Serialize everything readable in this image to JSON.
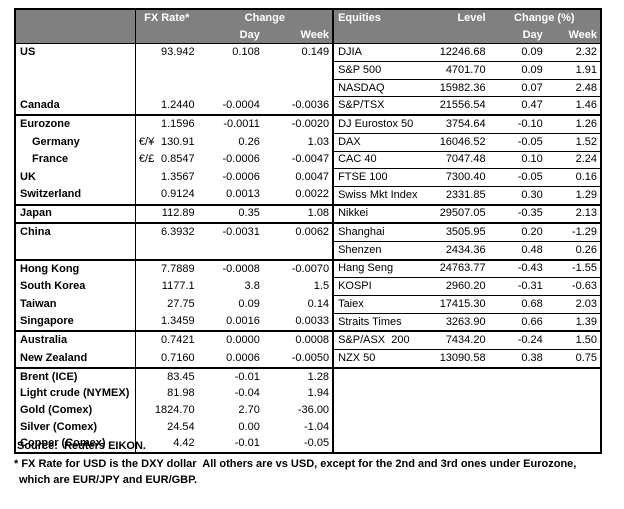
{
  "colors": {
    "header_bg": "#808080",
    "header_text": "#ffffff",
    "border": "#000000",
    "body_bg": "#ffffff",
    "text": "#000000"
  },
  "header": {
    "fx": {
      "rate_label": "FX Rate*",
      "change_label": "Change",
      "day_label": "Day",
      "week_label": "Week"
    },
    "equities": {
      "title": "Equities",
      "level_label": "Level",
      "change_label": "Change (%)",
      "day_label": "Day",
      "week_label": "Week"
    }
  },
  "rows": [
    {
      "section_start": false,
      "commodity": false,
      "left": {
        "label": "US",
        "rate": "93.942",
        "day": "0.108",
        "week": "0.149"
      },
      "right": {
        "name": "DJIA",
        "level": "12246.68",
        "day": "0.09",
        "week": "2.32"
      }
    },
    {
      "section_start": false,
      "commodity": false,
      "left": {},
      "right": {
        "name": "S&P 500",
        "level": "4701.70",
        "day": "0.09",
        "week": "1.91"
      }
    },
    {
      "section_start": false,
      "commodity": false,
      "left": {},
      "right": {
        "name": "NASDAQ",
        "level": "15982.36",
        "day": "0.07",
        "week": "2.48"
      }
    },
    {
      "section_start": false,
      "commodity": false,
      "left": {
        "label": "Canada",
        "rate": "1.2440",
        "day": "-0.0004",
        "week": "-0.0036"
      },
      "right": {
        "name": "S&P/TSX",
        "level": "21556.54",
        "day": "0.47",
        "week": "1.46"
      }
    },
    {
      "section_start": true,
      "commodity": false,
      "left": {
        "label": "Eurozone",
        "rate": "1.1596",
        "day": "-0.0011",
        "week": "-0.0020"
      },
      "right": {
        "name": "DJ Eurostox 50",
        "level": "3754.64",
        "day": "-0.10",
        "week": "1.26"
      }
    },
    {
      "section_start": false,
      "commodity": false,
      "left": {
        "label": "Germany",
        "indent": true,
        "symbol": "€/¥",
        "rate": "130.91",
        "day": "0.26",
        "week": "1.03"
      },
      "right": {
        "name": "DAX",
        "level": "16046.52",
        "day": "-0.05",
        "week": "1.52"
      }
    },
    {
      "section_start": false,
      "commodity": false,
      "left": {
        "label": "France",
        "indent": true,
        "symbol": "€/£",
        "rate": "0.8547",
        "day": "-0.0006",
        "week": "-0.0047"
      },
      "right": {
        "name": "CAC 40",
        "level": "7047.48",
        "day": "0.10",
        "week": "2.24"
      }
    },
    {
      "section_start": false,
      "commodity": false,
      "left": {
        "label": "UK",
        "rate": "1.3567",
        "day": "-0.0006",
        "week": "0.0047"
      },
      "right": {
        "name": "FTSE 100",
        "level": "7300.40",
        "day": "-0.05",
        "week": "0.16"
      }
    },
    {
      "section_start": false,
      "commodity": false,
      "left": {
        "label": "Switzerland",
        "rate": "0.9124",
        "day": "0.0013",
        "week": "0.0022"
      },
      "right": {
        "name": "Swiss Mkt Index",
        "level": "2331.85",
        "day": "0.30",
        "week": "1.29"
      }
    },
    {
      "section_start": true,
      "commodity": false,
      "left": {
        "label": "Japan",
        "rate": "112.89",
        "day": "0.35",
        "week": "1.08"
      },
      "right": {
        "name": "Nikkei",
        "level": "29507.05",
        "day": "-0.35",
        "week": "2.13"
      }
    },
    {
      "section_start": true,
      "commodity": false,
      "left": {
        "label": "China",
        "rate": "6.3932",
        "day": "-0.0031",
        "week": "0.0062"
      },
      "right": {
        "name": "Shanghai",
        "level": "3505.95",
        "day": "0.20",
        "week": "-1.29"
      }
    },
    {
      "section_start": false,
      "commodity": false,
      "left": {},
      "right": {
        "name": "Shenzen",
        "level": "2434.36",
        "day": "0.48",
        "week": "0.26"
      }
    },
    {
      "section_start": true,
      "commodity": false,
      "left": {
        "label": "Hong Kong",
        "rate": "7.7889",
        "day": "-0.0008",
        "week": "-0.0070"
      },
      "right": {
        "name": "Hang Seng",
        "level": "24763.77",
        "day": "-0.43",
        "week": "-1.55"
      }
    },
    {
      "section_start": false,
      "commodity": false,
      "left": {
        "label": "South Korea",
        "rate": "1177.1",
        "day": "3.8",
        "week": "1.5"
      },
      "right": {
        "name": "KOSPI",
        "level": "2960.20",
        "day": "-0.31",
        "week": "-0.63"
      }
    },
    {
      "section_start": false,
      "commodity": false,
      "left": {
        "label": "Taiwan",
        "rate": "27.75",
        "day": "0.09",
        "week": "0.14"
      },
      "right": {
        "name": "Taiex",
        "level": "17415.30",
        "day": "0.68",
        "week": "2.03"
      }
    },
    {
      "section_start": false,
      "commodity": false,
      "left": {
        "label": "Singapore",
        "rate": "1.3459",
        "day": "0.0016",
        "week": "0.0033"
      },
      "right": {
        "name": "Straits Times",
        "level": "3263.90",
        "day": "0.66",
        "week": "1.39"
      }
    },
    {
      "section_start": true,
      "commodity": false,
      "left": {
        "label": "Australia",
        "rate": "0.7421",
        "day": "0.0000",
        "week": "0.0008"
      },
      "right": {
        "name": "S&P/ASX  200",
        "level": "7434.20",
        "day": "-0.24",
        "week": "1.50"
      }
    },
    {
      "section_start": false,
      "commodity": false,
      "left": {
        "label": "New Zealand",
        "rate": "0.7160",
        "day": "0.0006",
        "week": "-0.0050"
      },
      "right": {
        "name": "NZX 50",
        "level": "13090.58",
        "day": "0.38",
        "week": "0.75"
      }
    },
    {
      "section_start": true,
      "commodity": true,
      "left": {
        "label": "Brent (ICE)",
        "rate": "83.45",
        "day": "-0.01",
        "week": "1.28"
      },
      "right": {}
    },
    {
      "section_start": false,
      "commodity": true,
      "left": {
        "label": "Light crude (NYMEX)",
        "rate": "81.98",
        "day": "-0.04",
        "week": "1.94"
      },
      "right": {}
    },
    {
      "section_start": false,
      "commodity": true,
      "left": {
        "label": "Gold (Comex)",
        "rate": "1824.70",
        "day": "2.70",
        "week": "-36.00"
      },
      "right": {}
    },
    {
      "section_start": false,
      "commodity": true,
      "left": {
        "label": "Silver (Comex)",
        "rate": "24.54",
        "day": "0.00",
        "week": "-1.04"
      },
      "right": {}
    },
    {
      "section_start": false,
      "commodity": true,
      "left": {
        "label": "Copper (Comex)",
        "rate": "4.42",
        "day": "-0.01",
        "week": "-0.05"
      },
      "right": {}
    }
  ],
  "footer": {
    "source": "Source:  Reuters EIKON.",
    "footnote_line1": "* FX Rate for USD is the DXY dollar  All others are vs USD, except for the 2nd and 3rd ones under Eurozone,",
    "footnote_line2": "which are EUR/JPY and EUR/GBP."
  }
}
